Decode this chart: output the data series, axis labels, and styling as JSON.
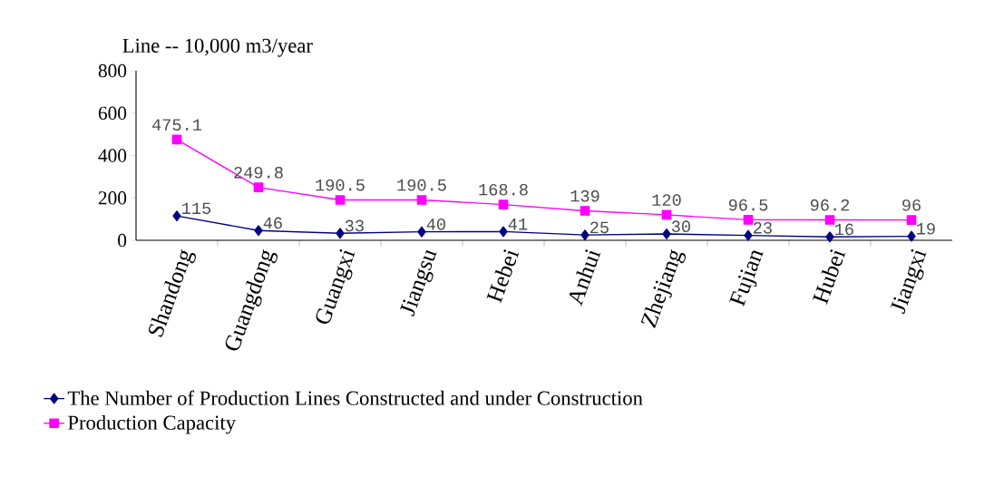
{
  "chart_data": {
    "type": "line",
    "ylabel": "Line -- 10,000 m3/year",
    "categories": [
      "Shandong",
      "Guangdong",
      "Guangxi",
      "Jiangsu",
      "Hebei",
      "Anhui",
      "Zhejiang",
      "Fujian",
      "Hubei",
      "Jiangxi"
    ],
    "series": [
      {
        "name": "The Number of Production Lines Constructed and under Construction",
        "color": "#000080",
        "marker": "diamond",
        "values": [
          115,
          46,
          33,
          40,
          41,
          25,
          30,
          23,
          16,
          19
        ]
      },
      {
        "name": "Production Capacity",
        "color": "#ff00ff",
        "marker": "square",
        "values": [
          475.1,
          249.8,
          190.5,
          190.5,
          168.8,
          139,
          120,
          96.5,
          96.2,
          96
        ]
      }
    ],
    "ylim": [
      0,
      800
    ],
    "yticks": [
      0,
      200,
      400,
      600,
      800
    ],
    "data_labels": true,
    "legend": "bottom",
    "grid": false
  }
}
